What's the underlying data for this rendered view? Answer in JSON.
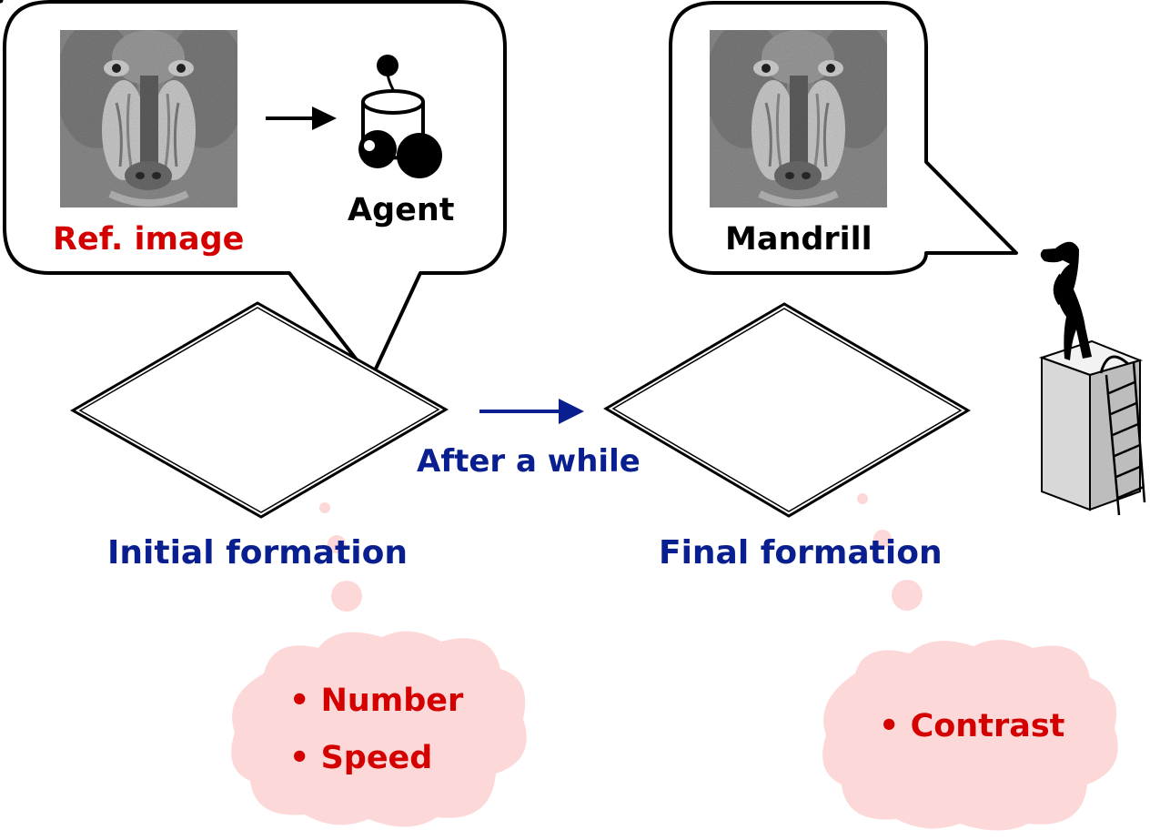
{
  "labels": {
    "ref_image": "Ref. image",
    "agent": "Agent",
    "mandrill": "Mandrill",
    "after_a_while": "After a while",
    "initial_formation": "Initial formation",
    "final_formation": "Final formation"
  },
  "thought_clouds": {
    "left": {
      "bullets": [
        "Number",
        "Speed"
      ]
    },
    "right": {
      "bullets": [
        "Contrast"
      ]
    }
  },
  "colors": {
    "label_red": "#d40000",
    "label_blue": "#0a1f8f",
    "cloud_fill": "#fdd8d8",
    "arrow_blue": "#0a1f8f"
  },
  "icons": {
    "agent": "robot-agent-icon",
    "observer": "observer-on-building-icon",
    "reference": "mandrill-photo"
  }
}
